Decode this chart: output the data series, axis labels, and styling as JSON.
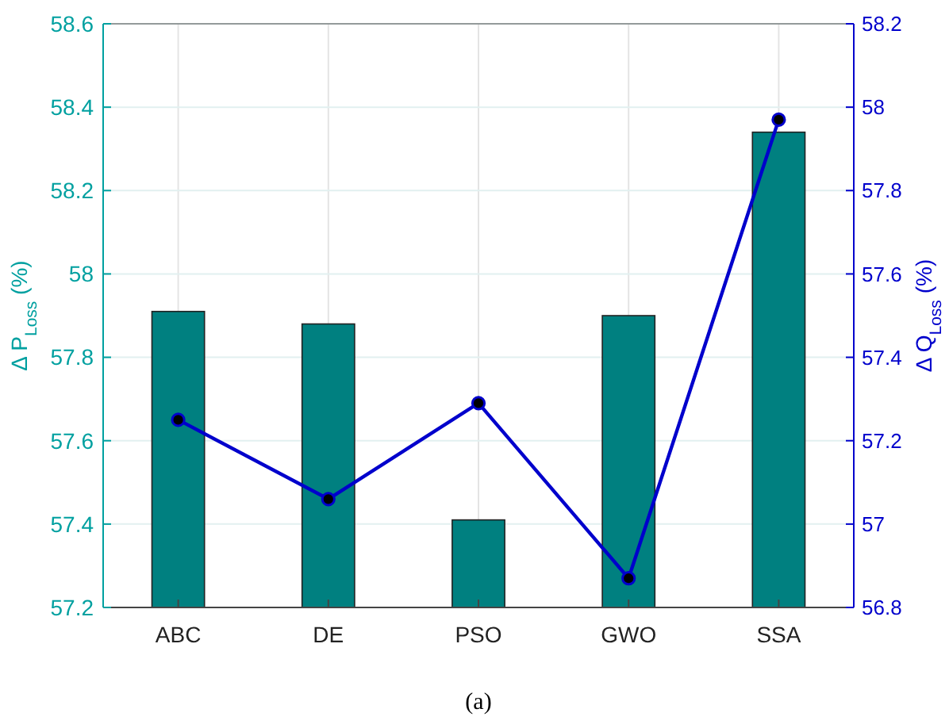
{
  "chart_data": {
    "type": "bar",
    "categories": [
      "ABC",
      "DE",
      "PSO",
      "GWO",
      "SSA"
    ],
    "ylabel": "Δ P$_{Loss}$ (%)",
    "y2label": "Δ Q$_{Loss}$ (%)",
    "ylim": [
      57.2,
      58.6
    ],
    "yticks": [
      57.2,
      57.4,
      57.6,
      57.8,
      58,
      58.2,
      58.4,
      58.6
    ],
    "y2lim": [
      56.8,
      58.2
    ],
    "y2ticks": [
      56.8,
      57,
      57.2,
      57.4,
      57.6,
      57.8,
      58,
      58.2
    ],
    "series": [
      {
        "color": "#008080",
        "values": [
          57.91,
          57.88,
          57.41,
          57.9,
          58.34
        ]
      },
      {
        "type": "line",
        "axis": "y2",
        "color": "#0000cc",
        "values": [
          57.25,
          57.06,
          57.29,
          56.87,
          57.97
        ]
      }
    ],
    "marker": "circle",
    "grid": true,
    "annotations": [
      "(a)"
    ]
  }
}
